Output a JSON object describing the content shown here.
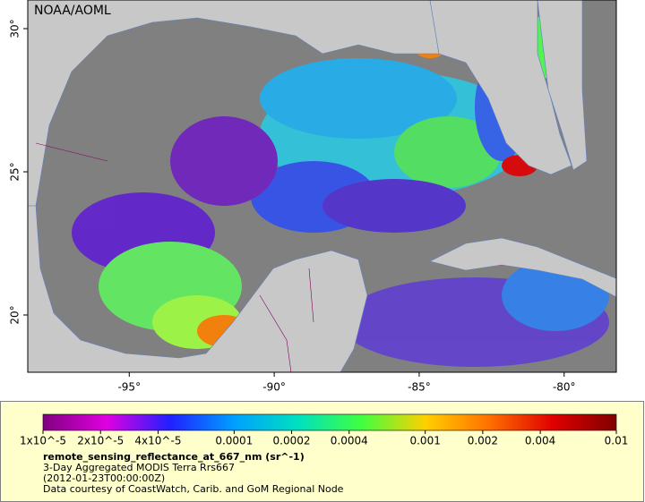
{
  "map": {
    "watermark": "NOAA/AOML",
    "xlim": [
      -98.5,
      -78.2
    ],
    "ylim": [
      18,
      31
    ],
    "xticks": [
      {
        "value": -95,
        "label": "-95°"
      },
      {
        "value": -90,
        "label": "-90°"
      },
      {
        "value": -85,
        "label": "-85°"
      },
      {
        "value": -80,
        "label": "-80°"
      }
    ],
    "yticks": [
      {
        "value": 20,
        "label": "20°"
      },
      {
        "value": 25,
        "label": "25°"
      },
      {
        "value": 30,
        "label": "30°"
      }
    ]
  },
  "legend": {
    "log_scale": true,
    "range": [
      1e-05,
      0.01
    ],
    "colors": [
      "#800080",
      "#e000e0",
      "#2020ff",
      "#00a0ff",
      "#00e0c0",
      "#40ff40",
      "#ffd000",
      "#ff7000",
      "#e00000",
      "#800000"
    ],
    "ticks": [
      {
        "value": 1e-05,
        "label": "1x10^-5"
      },
      {
        "value": 2e-05,
        "label": "2x10^-5"
      },
      {
        "value": 4e-05,
        "label": "4x10^-5"
      },
      0.0001,
      0.0002,
      0.0004,
      0.001,
      0.002,
      0.004,
      0.01
    ],
    "variable": "remote_sensing_reflectance_at_667_nm (sr^-1)",
    "description": "3-Day Aggregated MODIS Terra Rrs667",
    "time": "(2012-01-23T00:00:00Z)",
    "credit": "Data courtesy of CoastWatch, Carib. and GoM Regional Node"
  }
}
